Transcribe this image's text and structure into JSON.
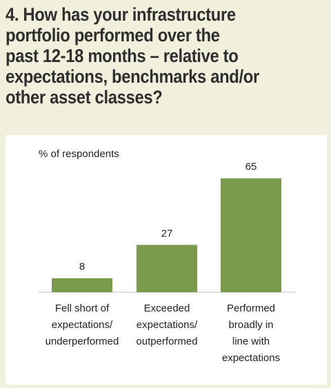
{
  "question": {
    "line1": "4. How has your infrastructure",
    "line2": "portfolio performed over the",
    "line3": "past 12-18 months – relative to",
    "line4": "expectations, benchmarks and/or",
    "line5": "other asset classes?"
  },
  "colors": {
    "background": "#f1f0dc",
    "panel": "#ffffff",
    "bar": "#7a9a4c",
    "text": "#2f2f2f"
  },
  "chart_data": {
    "type": "bar",
    "title": "",
    "ylabel": "% of respondents",
    "xlabel": "",
    "ylim": [
      0,
      70
    ],
    "grid": false,
    "categories": [
      [
        "Fell short of",
        "expectations/",
        "underperformed"
      ],
      [
        "Exceeded",
        "expectations/",
        "outperformed"
      ],
      [
        "Performed",
        "broadly in",
        "line with",
        "expectations"
      ]
    ],
    "values": [
      8,
      27,
      65
    ],
    "value_labels": [
      "8",
      "27",
      "65"
    ]
  }
}
